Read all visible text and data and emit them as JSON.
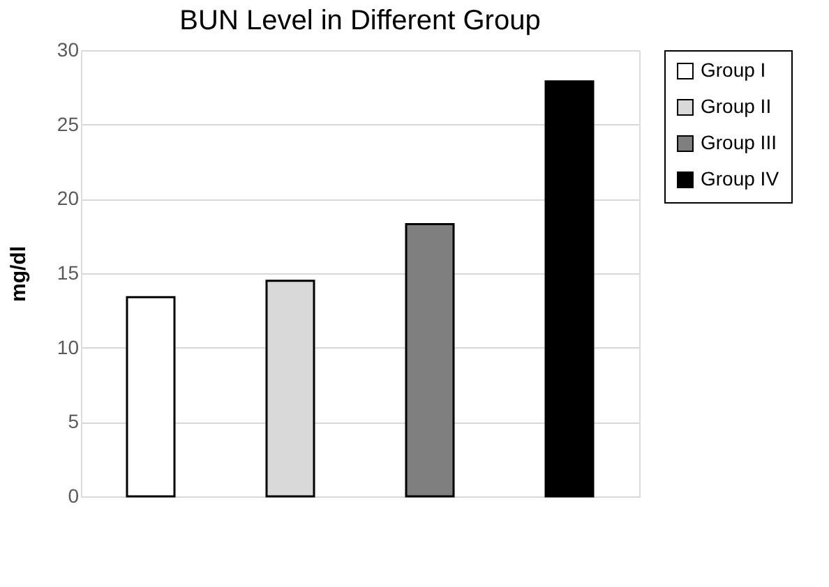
{
  "chart_data": {
    "type": "bar",
    "title": "BUN Level in Different Group",
    "ylabel": "mg/dl",
    "categories": [
      null,
      null,
      null,
      null
    ],
    "series": [
      {
        "name": "Group I",
        "color": "#ffffff",
        "values": [
          13.4,
          null,
          null,
          null
        ]
      },
      {
        "name": "Group II",
        "color": "#d9d9d9",
        "values": [
          null,
          14.5,
          null,
          null
        ]
      },
      {
        "name": "Group III",
        "color": "#7f7f7f",
        "values": [
          null,
          null,
          18.3,
          null
        ]
      },
      {
        "name": "Group IV",
        "color": "#000000",
        "values": [
          null,
          null,
          null,
          27.9
        ]
      }
    ],
    "ylim": [
      0,
      30
    ],
    "yticks": [
      0,
      5,
      10,
      15,
      20,
      25,
      30
    ],
    "grid": "y",
    "legend": "right",
    "tick_labels": "y"
  }
}
